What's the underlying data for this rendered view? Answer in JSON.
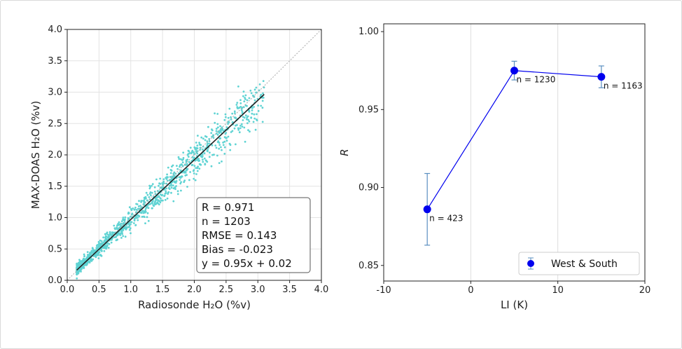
{
  "chart_data": [
    {
      "type": "scatter",
      "xlabel": "Radiosonde H₂O (%v)",
      "ylabel": "MAX-DOAS H₂O (%v)",
      "xlim": [
        0.0,
        4.0
      ],
      "ylim": [
        0.0,
        4.0
      ],
      "xticks": [
        "0.0",
        "0.5",
        "1.0",
        "1.5",
        "2.0",
        "2.5",
        "3.0",
        "3.5",
        "4.0"
      ],
      "yticks": [
        "0.0",
        "0.5",
        "1.0",
        "1.5",
        "2.0",
        "2.5",
        "3.0",
        "3.5",
        "4.0"
      ],
      "grid": true,
      "point_color": "#5fd3d3",
      "fit_color": "#222222",
      "fit_line": {
        "slope": 0.95,
        "intercept": 0.02,
        "x_range": [
          0.15,
          3.1
        ]
      },
      "one_to_one_line": true,
      "stats": {
        "r": "R = 0.971",
        "n": "n = 1203",
        "rmse": "RMSE = 0.143",
        "bias": "Bias = -0.023",
        "fit": "y = 0.95x + 0.02"
      },
      "point_count": 1203,
      "x_spread_range": [
        0.15,
        3.1
      ]
    },
    {
      "type": "line",
      "xlabel": "LI (K)",
      "ylabel": "R",
      "xlim": [
        -10,
        20
      ],
      "ylim": [
        0.84,
        1.005
      ],
      "xticks": [
        -10,
        0,
        10,
        20
      ],
      "yticks": [
        "0.85",
        "0.90",
        "0.95",
        "1.00"
      ],
      "grid": true,
      "legend_position": "bottom-right",
      "series": [
        {
          "name": "West & South",
          "color": "#0000ee",
          "errorbar_color": "#5a8fc0",
          "x": [
            -5,
            5,
            15
          ],
          "y": [
            0.886,
            0.975,
            0.971
          ],
          "yerr": [
            0.023,
            0.006,
            0.007
          ],
          "labels": [
            "n = 423",
            "n = 1230",
            "n = 1163"
          ]
        }
      ]
    }
  ]
}
